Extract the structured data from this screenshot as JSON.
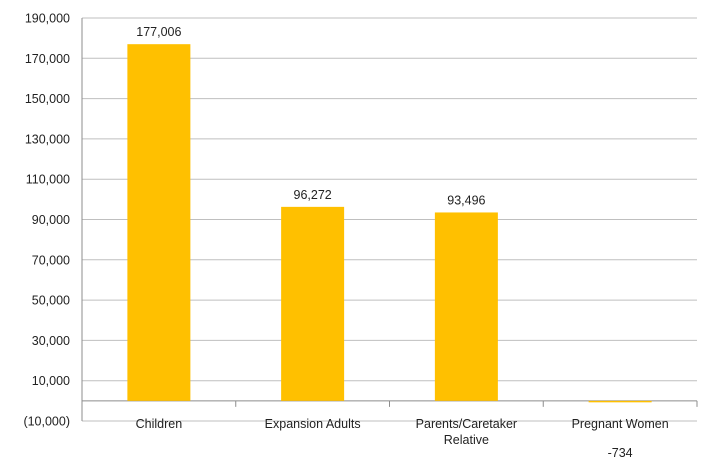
{
  "colors": {
    "bar": "#FFC000",
    "grid": "#BFBFBF",
    "axis": "#8C8C8C",
    "text": "#222222"
  },
  "chart_data": {
    "type": "bar",
    "categories": [
      "Children",
      "Expansion Adults",
      "Parents/Caretaker Relative",
      "Pregnant Women"
    ],
    "category_label_lines": [
      [
        "Children"
      ],
      [
        "Expansion Adults"
      ],
      [
        "Parents/Caretaker",
        "Relative"
      ],
      [
        "Pregnant Women"
      ]
    ],
    "values": [
      177006,
      96272,
      93496,
      -734
    ],
    "data_labels": [
      "177,006",
      "96,272",
      "93,496",
      "-734"
    ],
    "ylim": [
      -10000,
      190000
    ],
    "yticks": [
      -10000,
      10000,
      30000,
      50000,
      70000,
      90000,
      110000,
      130000,
      150000,
      170000,
      190000
    ],
    "ytick_labels": [
      "(10,000)",
      "10,000",
      "30,000",
      "50,000",
      "70,000",
      "90,000",
      "110,000",
      "130,000",
      "150,000",
      "170,000",
      "190,000"
    ],
    "grid": true,
    "legend": "none",
    "title": "",
    "xlabel": "",
    "ylabel": ""
  }
}
